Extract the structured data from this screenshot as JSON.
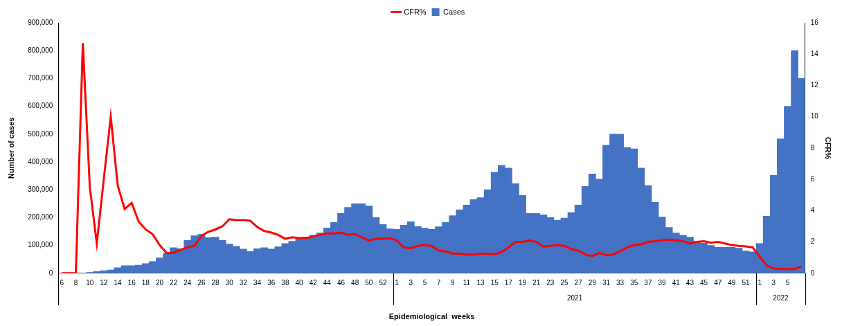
{
  "chart_data": {
    "type": "bar",
    "x_label": "Epidemiological  weeks",
    "y_label": "Number of cases",
    "y2_label": "CFR%",
    "categories": [
      "6",
      null,
      "8",
      null,
      "10",
      null,
      "12",
      null,
      "14",
      null,
      "16",
      null,
      "18",
      null,
      "20",
      null,
      "22",
      null,
      "24",
      null,
      "26",
      null,
      "28",
      null,
      "30",
      null,
      "32",
      null,
      "34",
      null,
      "36",
      null,
      "38",
      null,
      "40",
      null,
      "42",
      null,
      "44",
      null,
      "46",
      null,
      "48",
      null,
      "50",
      null,
      "52",
      null,
      "1",
      null,
      "3",
      null,
      "5",
      null,
      "7",
      null,
      "9",
      null,
      "11",
      null,
      "13",
      null,
      "15",
      null,
      "17",
      null,
      "19",
      null,
      "21",
      null,
      "23",
      null,
      "25",
      null,
      "27",
      null,
      "29",
      null,
      "31",
      null,
      "33",
      null,
      "35",
      null,
      "37",
      null,
      "39",
      null,
      "41",
      null,
      "43",
      null,
      "45",
      null,
      "47",
      null,
      "49",
      null,
      "51",
      null,
      "1",
      null,
      "3",
      null,
      "5",
      null,
      null
    ],
    "x_groups": [
      {
        "label": null,
        "count": 48
      },
      {
        "label": "2021",
        "count": 52
      },
      {
        "label": "2022",
        "count": 7
      }
    ],
    "series": [
      {
        "name": "Cases",
        "type": "bar",
        "color": "#4472c4",
        "axis": "y",
        "values": [
          0,
          0,
          0,
          1000,
          3000,
          6000,
          9000,
          12000,
          20000,
          27000,
          27000,
          29000,
          35000,
          42000,
          55000,
          72000,
          92000,
          88000,
          118000,
          135000,
          140000,
          128000,
          130000,
          118000,
          105000,
          97000,
          87000,
          78000,
          88000,
          92000,
          87000,
          95000,
          107000,
          115000,
          125000,
          130000,
          137000,
          145000,
          163000,
          183000,
          215000,
          237000,
          250000,
          250000,
          242000,
          200000,
          175000,
          160000,
          158000,
          173000,
          185000,
          168000,
          162000,
          158000,
          167000,
          183000,
          207000,
          228000,
          245000,
          265000,
          272000,
          300000,
          363000,
          388000,
          378000,
          322000,
          280000,
          215000,
          215000,
          210000,
          200000,
          190000,
          198000,
          218000,
          245000,
          312000,
          357000,
          338000,
          460000,
          500000,
          500000,
          452000,
          447000,
          378000,
          315000,
          255000,
          202000,
          165000,
          145000,
          137000,
          130000,
          115000,
          108000,
          100000,
          93000,
          93000,
          93000,
          90000,
          80000,
          77000,
          107000,
          205000,
          352000,
          483000,
          600000,
          800000,
          700000
        ]
      },
      {
        "name": "CFR%",
        "type": "line",
        "color": "#ff0000",
        "axis": "y2",
        "values": [
          0,
          0,
          0,
          14.7,
          5.5,
          1.9,
          6.0,
          10.0,
          5.6,
          4.1,
          4.5,
          3.3,
          2.8,
          2.5,
          1.8,
          1.3,
          1.3,
          1.5,
          1.65,
          1.75,
          2.4,
          2.65,
          2.8,
          3.0,
          3.45,
          3.4,
          3.4,
          3.35,
          2.95,
          2.7,
          2.6,
          2.45,
          2.2,
          2.3,
          2.25,
          2.25,
          2.35,
          2.45,
          2.55,
          2.55,
          2.6,
          2.45,
          2.5,
          2.3,
          2.1,
          2.2,
          2.2,
          2.25,
          2.1,
          1.65,
          1.6,
          1.75,
          1.8,
          1.75,
          1.45,
          1.4,
          1.25,
          1.25,
          1.2,
          1.2,
          1.25,
          1.25,
          1.22,
          1.35,
          1.65,
          2.0,
          2.0,
          2.1,
          2.0,
          1.7,
          1.75,
          1.8,
          1.75,
          1.55,
          1.45,
          1.2,
          1.1,
          1.3,
          1.15,
          1.2,
          1.4,
          1.65,
          1.8,
          1.85,
          2.0,
          2.05,
          2.1,
          2.15,
          2.1,
          2.05,
          1.9,
          2.0,
          2.05,
          1.95,
          2.0,
          1.9,
          1.8,
          1.75,
          1.72,
          1.65,
          1.05,
          0.5,
          0.3,
          0.27,
          0.27,
          0.27,
          0.45
        ]
      }
    ],
    "ylim": [
      0,
      900000
    ],
    "yticks": [
      0,
      {
        "value": 100000,
        "label": "100,000"
      },
      {
        "value": 200000,
        "label": "200,000"
      },
      {
        "value": 300000,
        "label": "300,000"
      },
      {
        "value": 400000,
        "label": "400,000"
      },
      {
        "value": 500000,
        "label": "500,000"
      },
      {
        "value": 600000,
        "label": "600,000"
      },
      {
        "value": 700000,
        "label": "700,000"
      },
      {
        "value": 800000,
        "label": "800,000"
      },
      {
        "value": 900000,
        "label": "900,000"
      }
    ],
    "y2lim": [
      0,
      16
    ],
    "y2ticks": [
      0,
      2,
      4,
      6,
      8,
      10,
      12,
      14,
      16
    ],
    "grid": false,
    "legend": "top"
  }
}
